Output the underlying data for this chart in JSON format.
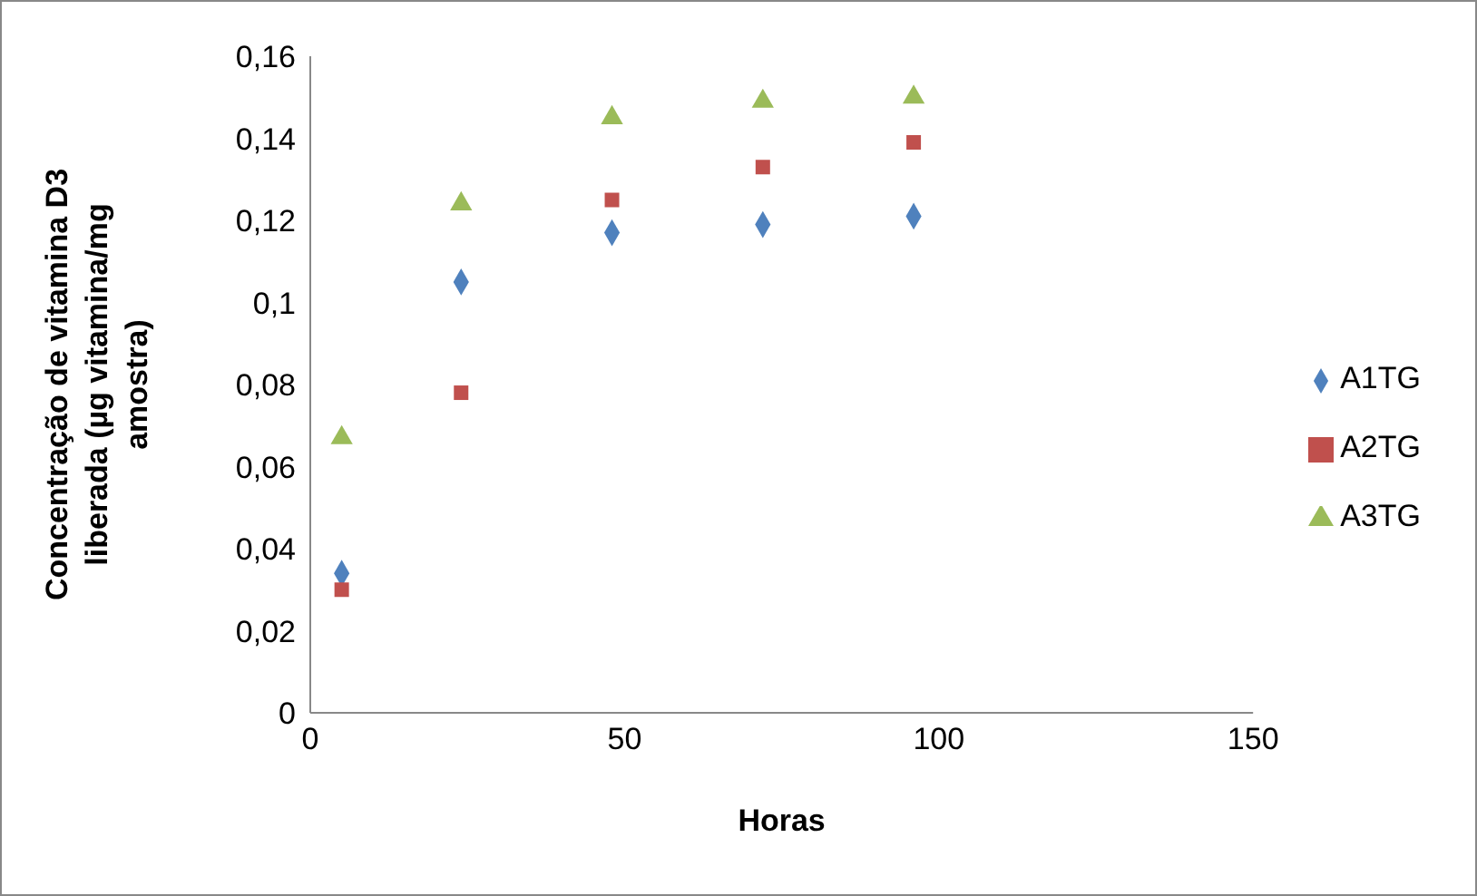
{
  "chart_data": {
    "type": "scatter",
    "xlabel": "Horas",
    "ylabel": "Concentração de vitamina D3 liberada (µg vitamina/mg amostra)",
    "series": [
      {
        "name": "A1TG",
        "color": "#4f81bd",
        "marker": "diamond",
        "x": [
          5,
          24,
          48,
          72,
          96
        ],
        "values": [
          0.034,
          0.105,
          0.117,
          0.119,
          0.121
        ]
      },
      {
        "name": "A2TG",
        "color": "#c0504d",
        "marker": "square",
        "x": [
          5,
          24,
          48,
          72,
          96
        ],
        "values": [
          0.03,
          0.078,
          0.125,
          0.133,
          0.139
        ]
      },
      {
        "name": "A3TG",
        "color": "#9bbb59",
        "marker": "triangle",
        "x": [
          5,
          24,
          48,
          72,
          96
        ],
        "values": [
          0.067,
          0.124,
          0.145,
          0.149,
          0.15
        ]
      }
    ],
    "xlim": [
      0,
      150
    ],
    "xticks": [
      0,
      50,
      100,
      150
    ],
    "ylim": [
      0,
      0.16
    ],
    "yticks": [
      0,
      {
        "value": 0.02,
        "label": "0,02"
      },
      {
        "value": 0.04,
        "label": "0,04"
      },
      {
        "value": 0.06,
        "label": "0,06"
      },
      {
        "value": 0.08,
        "label": "0,08"
      },
      {
        "value": 0.1,
        "label": "0,1"
      },
      {
        "value": 0.12,
        "label": "0,12"
      },
      {
        "value": 0.14,
        "label": "0,14"
      },
      {
        "value": 0.16,
        "label": "0,16"
      }
    ],
    "grid": false,
    "legend": "right"
  }
}
